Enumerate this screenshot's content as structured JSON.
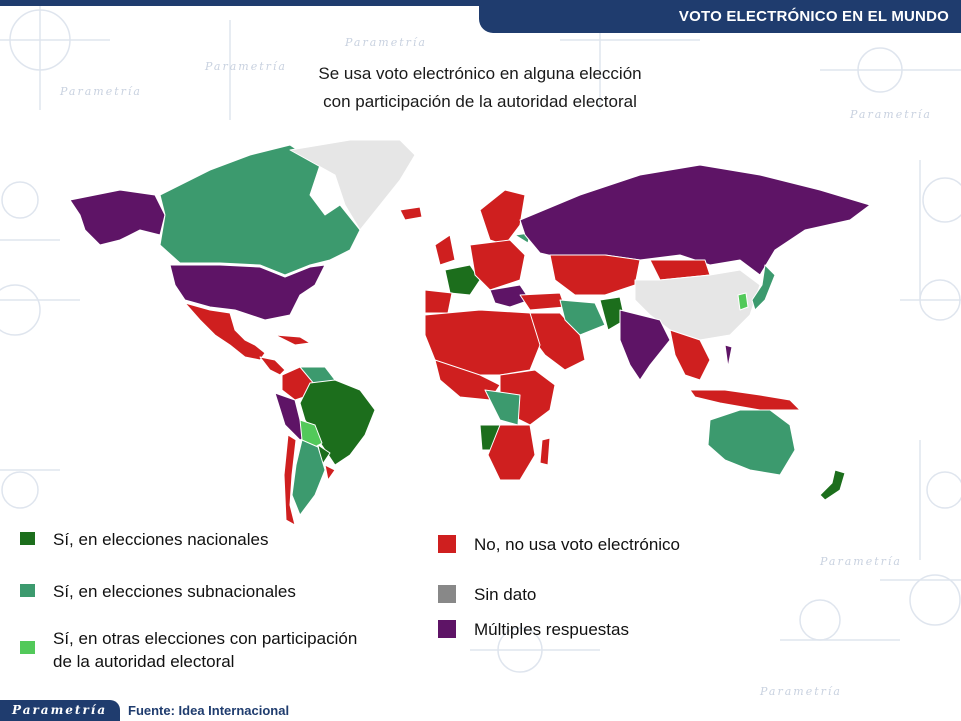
{
  "header": {
    "title": "VOTO ELECTRÓNICO EN EL MUNDO"
  },
  "subtitle": {
    "line1": "Se usa voto electrónico en alguna elección",
    "line2": "con participación de la autoridad electoral"
  },
  "colors": {
    "national": "#1c6e1c",
    "subnational": "#3c9a6e",
    "other": "#52c95a",
    "no": "#cf1f1f",
    "no_data": "#e6e6e6",
    "no_data_swatch": "#888888",
    "multiple": "#5e1466",
    "brand": "#1f3c6e"
  },
  "legend": {
    "national": "Sí, en elecciones nacionales",
    "subnational": "Sí, en elecciones subnacionales",
    "other_line1": "Sí, en otras elecciones con participación",
    "other_line2": "de la autoridad electoral",
    "no": "No, no usa voto electrónico",
    "no_data": "Sin dato",
    "multiple": "Múltiples respuestas"
  },
  "footer": {
    "logo": "Parametría",
    "source": "Fuente: Idea Internacional"
  },
  "watermark": "Parametría"
}
